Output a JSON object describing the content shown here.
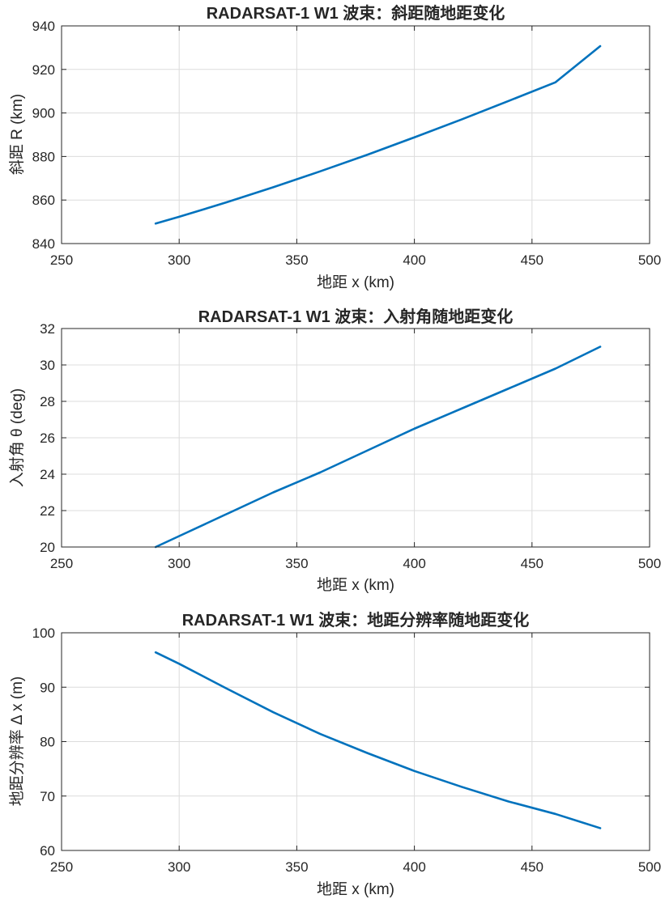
{
  "figure_background": "#ffffff",
  "line_color": "#0072BD",
  "grid_color": "#dcdcdc",
  "axis_color": "#262626",
  "chart_data": [
    {
      "type": "line",
      "title": "RADARSAT-1 W1 波束：斜距随地距变化",
      "xlabel": "地距 x (km)",
      "ylabel": "斜距 R (km)",
      "xlim": [
        250,
        500
      ],
      "ylim": [
        840,
        940
      ],
      "xticks": [
        250,
        300,
        350,
        400,
        450,
        500
      ],
      "yticks": [
        840,
        860,
        880,
        900,
        920,
        940
      ],
      "grid": true,
      "series": [
        {
          "x": [
            290,
            300,
            320,
            340,
            360,
            380,
            400,
            420,
            440,
            460,
            479
          ],
          "y": [
            849.2,
            852.3,
            858.9,
            865.9,
            873.2,
            880.8,
            888.8,
            897.0,
            905.5,
            914.1,
            930.7
          ]
        }
      ]
    },
    {
      "type": "line",
      "title": "RADARSAT-1 W1 波束：入射角随地距变化",
      "xlabel": "地距 x (km)",
      "ylabel": "入射角  θ  (deg)",
      "xlim": [
        250,
        500
      ],
      "ylim": [
        20,
        32
      ],
      "xticks": [
        250,
        300,
        350,
        400,
        450,
        500
      ],
      "yticks": [
        20,
        22,
        24,
        26,
        28,
        30,
        32
      ],
      "grid": true,
      "series": [
        {
          "x": [
            290,
            300,
            320,
            340,
            360,
            380,
            400,
            420,
            440,
            460,
            479
          ],
          "y": [
            20.0,
            20.6,
            21.8,
            23.0,
            24.1,
            25.3,
            26.5,
            27.6,
            28.7,
            29.8,
            31.0
          ]
        }
      ]
    },
    {
      "type": "line",
      "title": "RADARSAT-1 W1 波束：地距分辨率随地距变化",
      "xlabel": "地距 x (km)",
      "ylabel": "地距分辨率  Δ  x  (m)",
      "xlim": [
        250,
        500
      ],
      "ylim": [
        60,
        100
      ],
      "xticks": [
        250,
        300,
        350,
        400,
        450,
        500
      ],
      "yticks": [
        60,
        70,
        80,
        90,
        100
      ],
      "grid": true,
      "series": [
        {
          "x": [
            290,
            300,
            320,
            340,
            360,
            380,
            400,
            420,
            440,
            460,
            479
          ],
          "y": [
            96.4,
            94.3,
            89.8,
            85.4,
            81.4,
            77.9,
            74.6,
            71.7,
            69.0,
            66.7,
            64.1
          ]
        }
      ]
    }
  ]
}
